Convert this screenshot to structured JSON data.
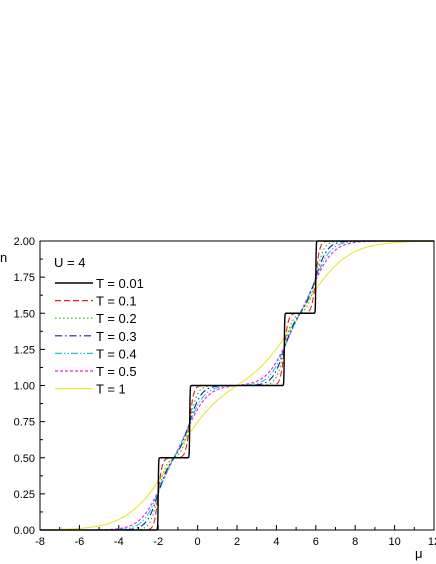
{
  "chart_data": {
    "type": "line",
    "title": "",
    "xlabel": "μ",
    "ylabel": "n",
    "xlim": [
      -8,
      12
    ],
    "ylim": [
      0,
      2
    ],
    "x_ticks": [
      "-8",
      "-6",
      "-4",
      "-2",
      "0",
      "2",
      "4",
      "6",
      "8",
      "10",
      "12"
    ],
    "y_ticks": [
      "0.00",
      "0.25",
      "0.50",
      "0.75",
      "1.00",
      "1.25",
      "1.50",
      "1.75",
      "2.00"
    ],
    "grid": false,
    "legend_position": "top-left",
    "annotation": "U = 4",
    "series": [
      {
        "name": "T = 0.01",
        "T": 0.01,
        "color": "#000000",
        "dash": "solid"
      },
      {
        "name": "T = 0.1",
        "T": 0.1,
        "color": "#e02020",
        "dash": "dash"
      },
      {
        "name": "T = 0.2",
        "T": 0.2,
        "color": "#20c020",
        "dash": "dot"
      },
      {
        "name": "T = 0.3",
        "T": 0.3,
        "color": "#1020b0",
        "dash": "dashdot"
      },
      {
        "name": "T = 0.4",
        "T": 0.4,
        "color": "#20c8d8",
        "dash": "dashdotdot"
      },
      {
        "name": "T = 0.5",
        "T": 0.5,
        "color": "#e020e0",
        "dash": "shortdash"
      },
      {
        "name": "T = 1",
        "T": 1,
        "color": "#e8e830",
        "dash": "solid"
      }
    ],
    "model": {
      "U": 4,
      "levels": [
        -2,
        -0.4,
        4.4,
        6
      ]
    }
  }
}
